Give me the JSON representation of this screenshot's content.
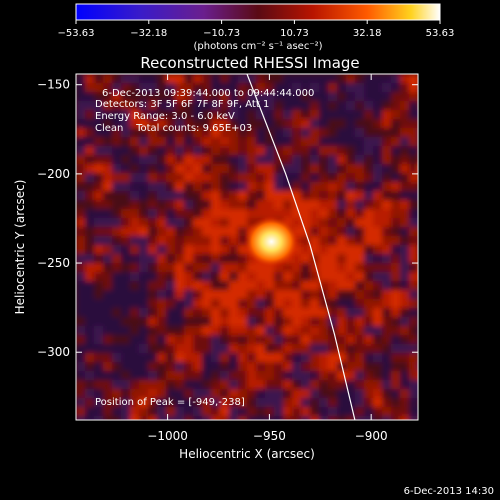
{
  "chart_data": {
    "type": "heatmap",
    "title": "Reconstructed RHESSI Image",
    "xlabel": "Heliocentric X (arcsec)",
    "ylabel": "Heliocentric Y (arcsec)",
    "xlim": [
      -1045,
      -877
    ],
    "ylim": [
      -338,
      -144
    ],
    "x_ticks": [
      -1000,
      -950,
      -900
    ],
    "y_ticks": [
      -150,
      -200,
      -250,
      -300
    ],
    "x_tick_labels": [
      "−1000",
      "−950",
      "−900"
    ],
    "y_tick_labels": [
      "−150",
      "−200",
      "−250",
      "−300"
    ],
    "colorbar": {
      "min": -53.63,
      "max": 53.63,
      "tick_labels": [
        "−53.63",
        "−32.18",
        "−10.73",
        "10.73",
        "32.18",
        "53.63"
      ],
      "unit_label": "(photons cm⁻² s⁻¹ asec⁻²)"
    },
    "annotations": {
      "time_range": "6-Dec-2013 09:39:44.000 to 09:44:44.000",
      "detectors": "Detectors: 3F 5F 6F 7F 8F 9F, Att 1",
      "energy": "Energy Range: 3.0 - 6.0 keV",
      "clean": "Clean    Total counts: 9.65E+03",
      "peak": "Position of Peak = [-949,-238]"
    },
    "peak": {
      "x": -949,
      "y": -238
    },
    "limb": [
      [
        -961,
        -144
      ],
      [
        -942,
        -200
      ],
      [
        -930,
        -240
      ],
      [
        -918,
        -290
      ],
      [
        -908,
        -338
      ]
    ],
    "footer": "6-Dec-2013 14:30"
  },
  "colors": {
    "background": "#000000",
    "foreground": "#ffffff",
    "colormap": [
      "#0000ff",
      "#5a2a8a",
      "#5a1010",
      "#c01a00",
      "#ff4000",
      "#ffd200",
      "#ffffff"
    ]
  }
}
